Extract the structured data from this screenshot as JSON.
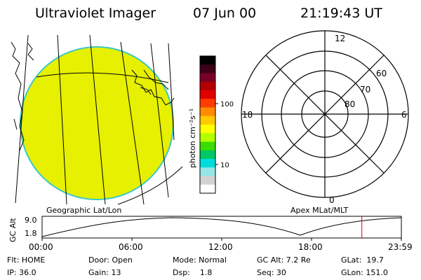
{
  "header": {
    "title": "Ultraviolet Imager",
    "date": "07 Jun 00",
    "time": "21:19:43 UT"
  },
  "colorbar": {
    "unit_label": "photon cm⁻²s⁻¹",
    "ticks": [
      "100",
      "10"
    ],
    "colors": [
      "#000000",
      "#3c0018",
      "#780028",
      "#b40000",
      "#e10000",
      "#ff3c00",
      "#ff8c00",
      "#ffc800",
      "#ffff00",
      "#b4ff00",
      "#3cdc00",
      "#00c864",
      "#00dcdc",
      "#96e6e6",
      "#d2d2d2",
      "#ffffff"
    ]
  },
  "polar_plot": {
    "mlt_labels": [
      "12",
      "6",
      "18",
      "0"
    ],
    "lat_labels": [
      "60",
      "70",
      "80"
    ]
  },
  "map": {
    "left_title": "Geographic Lat/Lon",
    "right_title": "Apex MLat/MLT",
    "disk_color": "#e6f000",
    "disk_edge": "#3cc8c8"
  },
  "altitude_plot": {
    "ylabel": "GC Alt",
    "ytick_top": "9.0",
    "ytick_bottom": "1.8",
    "xticks": [
      "00:00",
      "06:00",
      "12:00",
      "18:00",
      "23:59"
    ],
    "current_time_fraction": 0.89
  },
  "status": {
    "flt": "Flt: HOME",
    "ip": "IP: 36.0",
    "door": "Door: Open",
    "gain": "Gain: 13",
    "mode": "Mode: Normal",
    "dsp": "Dsp:    1.8",
    "gcalt": "GC Alt: 7.2 Re",
    "seq": "Seq: 30",
    "glat": "GLat:  19.7",
    "glon": "GLon: 151.0"
  }
}
